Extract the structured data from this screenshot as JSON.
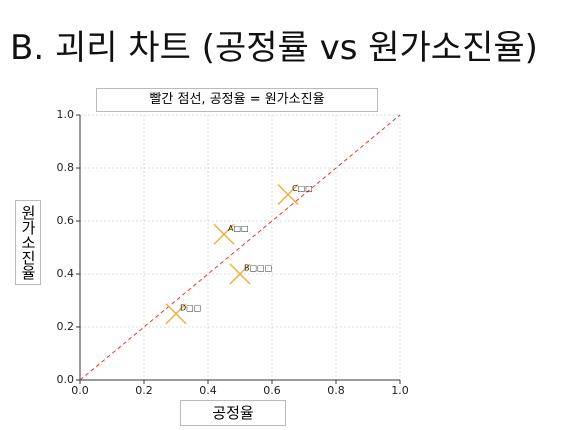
{
  "chart_data": {
    "type": "scatter",
    "title": "B. 괴리 차트 (공정률 vs 원가소진율)",
    "annotation": "빨간 점선, 공정율 = 원가소진율",
    "x_label": "공정율",
    "y_label": "원가소진율",
    "x": [
      0.45,
      0.5,
      0.65,
      0.3
    ],
    "y": [
      0.55,
      0.4,
      0.7,
      0.25
    ],
    "point_labels": [
      "A□□",
      "B□□□",
      "C□□",
      "D□□"
    ],
    "color": "#f0b040",
    "marker": "x",
    "xlim": [
      0,
      1
    ],
    "ylim": [
      0,
      1
    ],
    "xticks": [
      {
        "value": 0,
        "label": "0.0"
      },
      0.2,
      0.4,
      0.6,
      0.8,
      {
        "value": 1,
        "label": "1.0"
      }
    ],
    "yticks": [
      {
        "value": 0,
        "label": "0.0"
      },
      0.2,
      0.4,
      0.6,
      0.8,
      {
        "value": 1,
        "label": "1.0"
      }
    ],
    "grid": true,
    "reference_line": {
      "color": "#e8382e",
      "style": "dashed"
    }
  }
}
